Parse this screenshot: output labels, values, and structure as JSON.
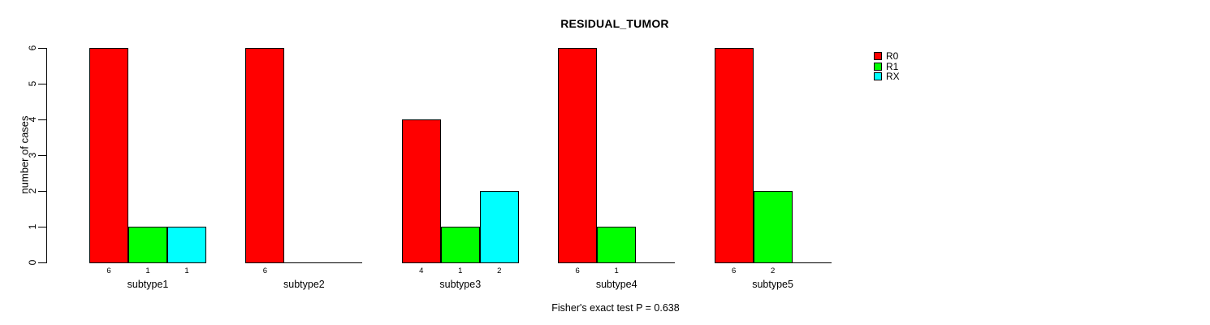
{
  "chart_data": {
    "type": "bar",
    "title": "RESIDUAL_TUMOR",
    "ylabel": "number of cases",
    "footer": "Fisher's exact test P = 0.638",
    "categories": [
      "subtype1",
      "subtype2",
      "subtype3",
      "subtype4",
      "subtype5"
    ],
    "series": [
      {
        "name": "R0",
        "color": "#FF0000",
        "values": [
          6,
          6,
          4,
          6,
          6
        ]
      },
      {
        "name": "R1",
        "color": "#00FF00",
        "values": [
          1,
          0,
          1,
          1,
          2
        ]
      },
      {
        "name": "RX",
        "color": "#00FFFF",
        "values": [
          1,
          0,
          2,
          0,
          0
        ]
      }
    ],
    "bar_value_labels": {
      "subtype1": [
        6,
        1,
        1
      ],
      "subtype2": [
        6
      ],
      "subtype3": [
        4,
        1,
        2
      ],
      "subtype4": [
        6,
        1
      ],
      "subtype5": [
        6,
        2
      ]
    },
    "ylim": [
      0,
      6
    ],
    "yticks": [
      0,
      1,
      2,
      3,
      4,
      5,
      6
    ],
    "grid": false,
    "legend": {
      "position": "right",
      "entries": [
        {
          "label": "R0",
          "color": "#FF0000"
        },
        {
          "label": "R1",
          "color": "#00FF00"
        },
        {
          "label": "RX",
          "color": "#00FFFF"
        }
      ]
    },
    "colors": {
      "axis": "#000000",
      "text": "#000000",
      "background": "#FFFFFF"
    }
  }
}
